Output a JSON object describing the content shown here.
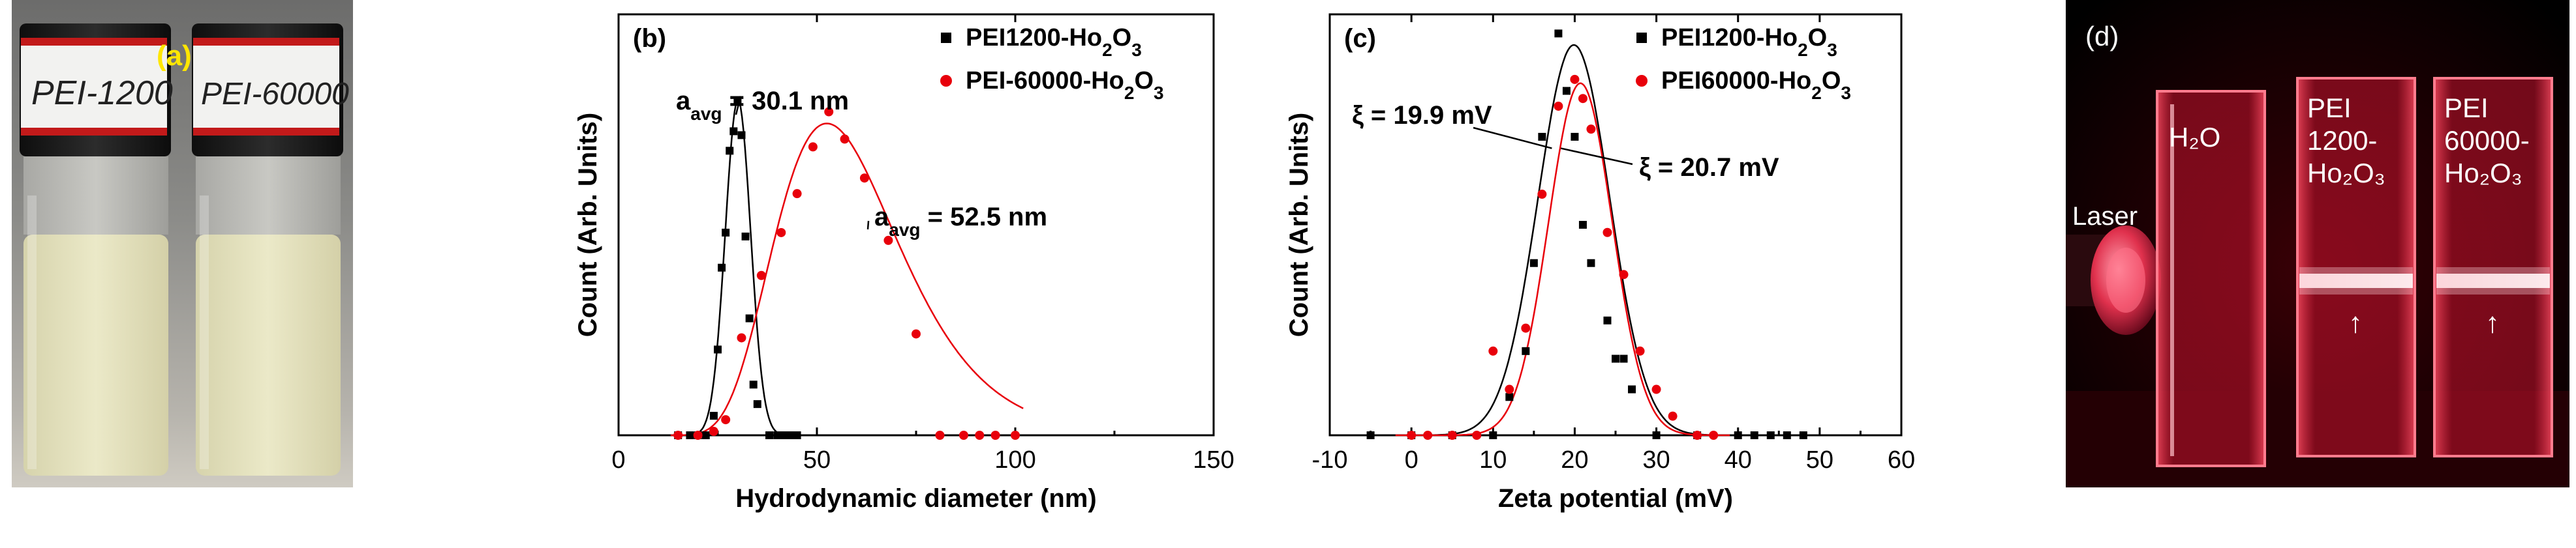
{
  "panels": {
    "a": {
      "label": "(a)",
      "vial_labels": [
        "PEI-1200",
        "PEI-60000"
      ]
    },
    "d": {
      "label": "(d)",
      "laser_label": "Laser",
      "cuvette_labels": [
        [
          "H₂O"
        ],
        [
          "PEI",
          "1200-",
          "Ho₂O₃"
        ],
        [
          "PEI",
          "60000-",
          "Ho₂O₃"
        ]
      ],
      "arrow_glyph": "↑"
    }
  },
  "colors": {
    "black": "#000000",
    "red": "#e8000b"
  },
  "chart_data": [
    {
      "id": "b",
      "type": "scatter",
      "panel_label": "(b)",
      "xlabel": "Hydrodynamic diameter (nm)",
      "ylabel": "Count (Arb. Units)",
      "xlim": [
        0,
        150
      ],
      "ylim": [
        0,
        1.08
      ],
      "xticks": [
        0,
        50,
        100,
        150
      ],
      "xtick_labels": [
        "0",
        "50",
        "100",
        "150"
      ],
      "legend_position": "top-right",
      "series": [
        {
          "name": "PEI1200-Ho2O3",
          "name_parts": [
            "PEI1200-Ho",
            "2",
            "O",
            "3"
          ],
          "color": "#000000",
          "marker": "square",
          "x": [
            15,
            18,
            20,
            22,
            24,
            25,
            26,
            27,
            28,
            29,
            30,
            31,
            32,
            33,
            34,
            35,
            38,
            40,
            41,
            42,
            43,
            44,
            45
          ],
          "y": [
            0.0,
            0.0,
            0.0,
            0.0,
            0.05,
            0.22,
            0.43,
            0.52,
            0.73,
            0.78,
            0.86,
            0.77,
            0.51,
            0.3,
            0.13,
            0.08,
            0.0,
            0.0,
            0.0,
            0.0,
            0.0,
            0.0,
            0.0
          ],
          "fit": {
            "shape": "gaussian",
            "center": 30.1,
            "sigma": 3.2,
            "amp": 0.86
          }
        },
        {
          "name": "PEI-60000-Ho2O3",
          "name_parts": [
            "PEI-60000-Ho",
            "2",
            "O",
            "3"
          ],
          "color": "#e8000b",
          "marker": "circle",
          "x": [
            15,
            20,
            24,
            27,
            31,
            36,
            41,
            45,
            49,
            53,
            57,
            62,
            68,
            75,
            81,
            87,
            91,
            95,
            100
          ],
          "y": [
            0.0,
            0.0,
            0.01,
            0.04,
            0.25,
            0.41,
            0.52,
            0.62,
            0.74,
            0.83,
            0.76,
            0.66,
            0.5,
            0.26,
            0.0,
            0.0,
            0.0,
            0.0,
            0.0
          ],
          "fit": {
            "shape": "lognormal",
            "median": 52.5,
            "sigma_ln": 0.3,
            "amp": 0.8
          }
        }
      ],
      "annotations": [
        {
          "text_parts": [
            "a",
            "avg",
            " = 30.1 nm"
          ],
          "points_to": [
            30.1,
            0.86
          ]
        },
        {
          "text_parts": [
            "a",
            "avg",
            " = 52.5 nm"
          ],
          "points_to": [
            63,
            0.55
          ]
        }
      ]
    },
    {
      "id": "c",
      "type": "scatter",
      "panel_label": "(c)",
      "xlabel": "Zeta potential (mV)",
      "ylabel": "Count (Arb. Units)",
      "xlim": [
        -10,
        60
      ],
      "ylim": [
        0,
        1.1
      ],
      "xticks": [
        -10,
        0,
        10,
        20,
        30,
        40,
        50,
        60
      ],
      "xtick_labels": [
        "-10",
        "0",
        "10",
        "20",
        "30",
        "40",
        "50",
        "60"
      ],
      "legend_position": "top-right",
      "series": [
        {
          "name": "PEI1200-Ho2O3",
          "name_parts": [
            "PEI1200-Ho",
            "2",
            "O",
            "3"
          ],
          "color": "#000000",
          "marker": "square",
          "x": [
            -5,
            0,
            5,
            10,
            12,
            14,
            15,
            16,
            18,
            19,
            20,
            21,
            22,
            24,
            25,
            26,
            27,
            30,
            35,
            40,
            42,
            44,
            46,
            48
          ],
          "y": [
            0.0,
            0.0,
            0.0,
            0.0,
            0.1,
            0.22,
            0.45,
            0.78,
            1.05,
            0.9,
            0.78,
            0.55,
            0.45,
            0.3,
            0.2,
            0.2,
            0.12,
            0.0,
            0.0,
            0.0,
            0.0,
            0.0,
            0.0,
            0.0
          ],
          "fit": {
            "shape": "gaussian",
            "center": 19.9,
            "sigma": 4.4,
            "amp": 1.02
          },
          "annotation": "ξ = 19.9 mV"
        },
        {
          "name": "PEI60000-Ho2O3",
          "name_parts": [
            "PEI60000-Ho",
            "2",
            "O",
            "3"
          ],
          "color": "#e8000b",
          "marker": "circle",
          "x": [
            0,
            2,
            5,
            8,
            10,
            12,
            14,
            16,
            18,
            20,
            21,
            22,
            24,
            26,
            28,
            30,
            32,
            35,
            37
          ],
          "y": [
            0.0,
            0.0,
            0.0,
            0.0,
            0.22,
            0.12,
            0.28,
            0.63,
            0.86,
            0.93,
            0.88,
            0.8,
            0.53,
            0.42,
            0.22,
            0.12,
            0.05,
            0.0,
            0.0
          ],
          "fit": {
            "shape": "gaussian",
            "center": 20.7,
            "sigma": 3.9,
            "amp": 0.92
          },
          "annotation": "ξ = 20.7 mV"
        }
      ],
      "annotations": [
        {
          "text": "ξ = 19.9 mV",
          "points_to": [
            17.2,
            0.75
          ]
        },
        {
          "text": "ξ = 20.7 mV",
          "points_to": [
            18.3,
            0.75
          ]
        }
      ]
    }
  ]
}
